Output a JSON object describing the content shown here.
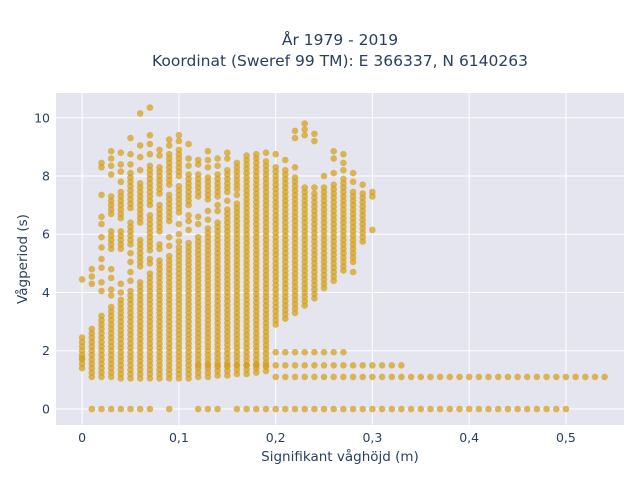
{
  "chart_data": {
    "type": "scatter",
    "title_line1": "År 1979 - 2019",
    "title_line2": "Koordinat (Sweref 99 TM): E 366337, N 6140263",
    "xlabel": "Signifikant våghöjd (m)",
    "ylabel": "Vågperiod (s)",
    "xlim": [
      -0.027,
      0.56
    ],
    "ylim": [
      -0.55,
      10.85
    ],
    "x_ticks": [
      0,
      0.1,
      0.2,
      0.3,
      0.4,
      0.5
    ],
    "x_tick_labels": [
      "0",
      "0,1",
      "0,2",
      "0,3",
      "0,4",
      "0,5"
    ],
    "y_ticks": [
      0,
      2,
      4,
      6,
      8,
      10
    ],
    "y_tick_labels": [
      "0",
      "2",
      "4",
      "6",
      "8",
      "10"
    ],
    "grid": true,
    "marker_color": "#D4A017",
    "background_color": "#E5E5F0",
    "columns": [
      {
        "x": 0.0,
        "ranges": [
          [
            1.4,
            2.55
          ]
        ],
        "extra": [
          4.45,
          1.75
        ]
      },
      {
        "x": 0.01,
        "ranges": [
          [
            1.1,
            2.75
          ]
        ],
        "extra": [
          4.3,
          4.55,
          4.8
        ]
      },
      {
        "x": 0.02,
        "ranges": [
          [
            1.1,
            3.3
          ]
        ],
        "extra": [
          4.05,
          4.35,
          4.85,
          5.15,
          5.55,
          5.9,
          6.35,
          6.6,
          7.35,
          8.3,
          8.45
        ]
      },
      {
        "x": 0.03,
        "ranges": [
          [
            1.1,
            3.6
          ],
          [
            5.5,
            6.2
          ],
          [
            6.7,
            7.4
          ]
        ],
        "extra": [
          3.9,
          4.1,
          4.5,
          4.8,
          8.05,
          8.35,
          8.6,
          8.85
        ]
      },
      {
        "x": 0.04,
        "ranges": [
          [
            1.05,
            3.85
          ],
          [
            5.5,
            6.15
          ],
          [
            6.55,
            7.45
          ]
        ],
        "extra": [
          4.0,
          4.3,
          7.8,
          8.15,
          8.4,
          8.8
        ]
      },
      {
        "x": 0.05,
        "ranges": [
          [
            1.05,
            4.1
          ],
          [
            5.65,
            6.45
          ],
          [
            6.9,
            8.1
          ]
        ],
        "extra": [
          4.4,
          4.7,
          5.05,
          5.35,
          8.4,
          8.75,
          9.3
        ]
      },
      {
        "x": 0.06,
        "ranges": [
          [
            1.05,
            4.45
          ],
          [
            4.9,
            5.9
          ],
          [
            6.4,
            7.85
          ]
        ],
        "extra": [
          8.2,
          8.65,
          9.05,
          10.15
        ]
      },
      {
        "x": 0.07,
        "ranges": [
          [
            1.05,
            4.75
          ],
          [
            5.45,
            6.7
          ],
          [
            7.0,
            8.45
          ]
        ],
        "extra": [
          5.0,
          5.15,
          8.75,
          9.1,
          9.4,
          10.35
        ]
      },
      {
        "x": 0.08,
        "ranges": [
          [
            1.05,
            5.1
          ],
          [
            6.1,
            7.05
          ],
          [
            7.4,
            8.35
          ]
        ],
        "extra": [
          5.5,
          5.65,
          8.7,
          8.9
        ]
      },
      {
        "x": 0.09,
        "ranges": [
          [
            1.05,
            5.3
          ],
          [
            6.45,
            7.35
          ],
          [
            7.7,
            8.75
          ]
        ],
        "extra": [
          5.6,
          5.9,
          9.05,
          9.25
        ]
      },
      {
        "x": 0.1,
        "ranges": [
          [
            1.05,
            5.55
          ],
          [
            6.75,
            7.65
          ],
          [
            8.0,
            8.95
          ]
        ],
        "extra": [
          5.75,
          6.0,
          6.35,
          9.2,
          9.4
        ]
      },
      {
        "x": 0.11,
        "ranges": [
          [
            1.05,
            5.8
          ],
          [
            7.0,
            8.05
          ]
        ],
        "extra": [
          6.15,
          6.45,
          6.65,
          8.35,
          8.6,
          9.1
        ]
      },
      {
        "x": 0.12,
        "ranges": [
          [
            1.1,
            5.95
          ],
          [
            7.3,
            8.1
          ]
        ],
        "extra": [
          1.5,
          6.35,
          6.6,
          8.4,
          8.55
        ]
      },
      {
        "x": 0.13,
        "ranges": [
          [
            1.1,
            6.2
          ],
          [
            7.2,
            8.0
          ]
        ],
        "extra": [
          1.5,
          6.5,
          6.8,
          8.3,
          8.55,
          8.85
        ]
      },
      {
        "x": 0.14,
        "ranges": [
          [
            1.15,
            6.45
          ],
          [
            7.3,
            8.05
          ]
        ],
        "extra": [
          1.5,
          6.8,
          7.0,
          8.35,
          8.6
        ]
      },
      {
        "x": 0.15,
        "ranges": [
          [
            1.15,
            6.9
          ],
          [
            7.45,
            8.3
          ]
        ],
        "extra": [
          1.5,
          7.15,
          8.6,
          8.8
        ]
      },
      {
        "x": 0.16,
        "ranges": [
          [
            1.2,
            7.1
          ],
          [
            7.55,
            8.5
          ]
        ],
        "extra": [
          1.5,
          7.35
        ]
      },
      {
        "x": 0.17,
        "ranges": [
          [
            1.2,
            8.75
          ]
        ],
        "extra": [
          1.5
        ]
      },
      {
        "x": 0.18,
        "ranges": [
          [
            1.25,
            8.75
          ]
        ],
        "extra": [
          1.5
        ]
      },
      {
        "x": 0.19,
        "ranges": [
          [
            1.3,
            8.6
          ]
        ],
        "extra": [
          1.5,
          8.8
        ]
      },
      {
        "x": 0.2,
        "ranges": [
          [
            2.9,
            8.4
          ]
        ],
        "extra": [
          1.1,
          1.5,
          1.95,
          8.75
        ]
      },
      {
        "x": 0.21,
        "ranges": [
          [
            3.1,
            8.3
          ]
        ],
        "extra": [
          1.1,
          1.5,
          1.95,
          8.55
        ]
      },
      {
        "x": 0.22,
        "ranges": [
          [
            3.3,
            8.0
          ]
        ],
        "extra": [
          1.1,
          1.5,
          1.95,
          8.3,
          9.3,
          9.55
        ]
      },
      {
        "x": 0.23,
        "ranges": [
          [
            3.55,
            7.7
          ]
        ],
        "extra": [
          1.1,
          1.5,
          1.95,
          9.4,
          9.6,
          9.8
        ]
      },
      {
        "x": 0.24,
        "ranges": [
          [
            3.8,
            7.4
          ]
        ],
        "extra": [
          1.1,
          1.5,
          1.95,
          7.6,
          9.2,
          9.45
        ]
      },
      {
        "x": 0.25,
        "ranges": [
          [
            4.15,
            7.6
          ]
        ],
        "extra": [
          1.1,
          1.5,
          1.95,
          8.0
        ]
      },
      {
        "x": 0.26,
        "ranges": [
          [
            4.4,
            7.8
          ]
        ],
        "extra": [
          1.1,
          1.5,
          1.95,
          8.1,
          8.6,
          8.85
        ]
      },
      {
        "x": 0.27,
        "ranges": [
          [
            4.75,
            7.9
          ]
        ],
        "extra": [
          1.1,
          1.5,
          1.95,
          8.2,
          8.45,
          8.75
        ]
      },
      {
        "x": 0.28,
        "ranges": [
          [
            5.05,
            7.5
          ]
        ],
        "extra": [
          1.1,
          1.5,
          4.7,
          7.8,
          8.1
        ]
      },
      {
        "x": 0.29,
        "ranges": [
          [
            5.75,
            7.5
          ]
        ],
        "extra": [
          1.1,
          1.5,
          7.7
        ]
      },
      {
        "x": 0.3,
        "ranges": [],
        "extra": [
          1.1,
          1.5,
          6.15,
          7.3,
          7.45
        ]
      },
      {
        "x": 0.31,
        "ranges": [],
        "extra": [
          1.1,
          1.5
        ]
      },
      {
        "x": 0.32,
        "ranges": [],
        "extra": [
          1.1,
          1.5
        ]
      },
      {
        "x": 0.33,
        "ranges": [],
        "extra": [
          1.1,
          1.5
        ]
      },
      {
        "x": 0.34,
        "ranges": [],
        "extra": [
          1.1
        ]
      }
    ],
    "tail_row": {
      "y": 1.1,
      "x_from": 0.35,
      "x_to": 0.54,
      "step": 0.01
    },
    "zero_row": {
      "y": 0,
      "x": [
        0.01,
        0.02,
        0.03,
        0.04,
        0.05,
        0.06,
        0.07,
        0.09,
        0.12,
        0.13,
        0.14,
        0.16,
        0.17,
        0.18,
        0.19,
        0.2,
        0.21,
        0.22,
        0.23,
        0.24,
        0.25,
        0.26,
        0.27,
        0.28,
        0.29,
        0.3,
        0.31,
        0.32,
        0.33,
        0.34,
        0.35,
        0.36,
        0.37,
        0.38,
        0.39,
        0.4,
        0.41,
        0.42,
        0.43,
        0.44,
        0.45,
        0.46,
        0.47,
        0.48,
        0.49,
        0.5
      ]
    }
  }
}
